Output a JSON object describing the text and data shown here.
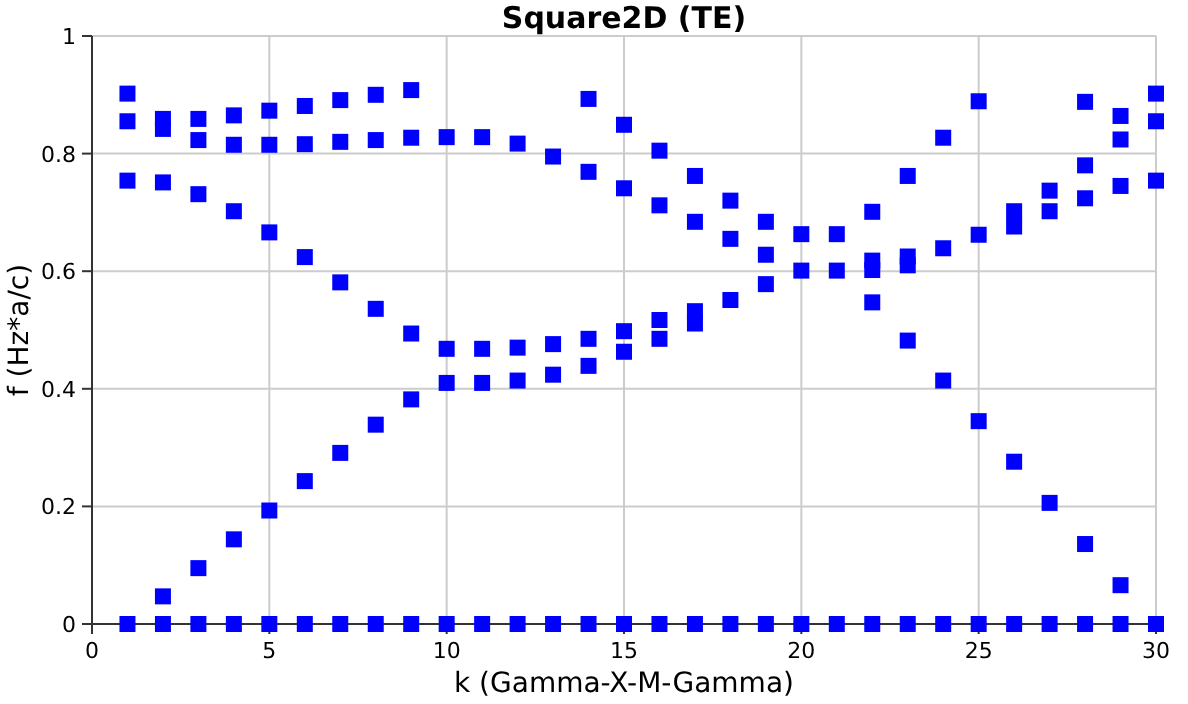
{
  "chart_data": {
    "type": "scatter",
    "title": "Square2D (TE)",
    "xlabel": "k (Gamma-X-M-Gamma)",
    "ylabel": "f (Hz*a/c)",
    "xlim": [
      0,
      30
    ],
    "xticks": [
      0,
      5,
      10,
      15,
      20,
      25,
      30
    ],
    "ylim": [
      0,
      1
    ],
    "yticks": [
      0,
      0.2,
      0.4,
      0.6,
      0.8,
      1
    ],
    "grid": true,
    "marker": "square",
    "series": [
      {
        "color": "#0000ff",
        "x": [
          1,
          2,
          3,
          4,
          5,
          6,
          7,
          8,
          9,
          10,
          11,
          12,
          13,
          14,
          15,
          16,
          17,
          18,
          19,
          20,
          21,
          22,
          23,
          24,
          25,
          26,
          27,
          28,
          29,
          30
        ],
        "values": [
          0,
          0,
          0,
          0,
          0,
          0,
          0,
          0,
          0,
          0,
          0,
          0,
          0,
          0,
          0,
          0,
          0,
          0,
          0,
          0,
          0,
          0,
          0,
          0,
          0,
          0,
          0,
          0,
          0,
          0
        ]
      },
      {
        "color": "#0000ff",
        "x": [
          2,
          3,
          4,
          5,
          6,
          7,
          8,
          9,
          10,
          11,
          12,
          13,
          14,
          15,
          16,
          17,
          18,
          19,
          20,
          21,
          22,
          23,
          24,
          25,
          26,
          27,
          28,
          29
        ],
        "values": [
          0.047,
          0.095,
          0.144,
          0.193,
          0.243,
          0.291,
          0.339,
          0.382,
          0.41,
          0.41,
          0.414,
          0.424,
          0.439,
          0.463,
          0.485,
          0.511,
          0.551,
          0.578,
          0.601,
          0.601,
          0.547,
          0.482,
          0.414,
          0.345,
          0.276,
          0.206,
          0.136,
          0.066
        ]
      },
      {
        "color": "#0000ff",
        "x": [
          1,
          2,
          3,
          4,
          5,
          6,
          7,
          8,
          9,
          10,
          11,
          12,
          13,
          14,
          15,
          16,
          17,
          18,
          19,
          20,
          21,
          22,
          23,
          24,
          25,
          26,
          27,
          28,
          29,
          30
        ],
        "values": [
          0.754,
          0.751,
          0.731,
          0.702,
          0.666,
          0.624,
          0.581,
          0.536,
          0.494,
          0.468,
          0.468,
          0.47,
          0.476,
          0.485,
          0.498,
          0.517,
          0.532,
          0.655,
          0.628,
          0.663,
          0.663,
          0.602,
          0.61,
          0.639,
          0.662,
          0.676,
          0.702,
          0.724,
          0.745,
          0.754
        ]
      },
      {
        "color": "#0000ff",
        "x": [
          1,
          2,
          3,
          4,
          5,
          6,
          7,
          8,
          9,
          10,
          11,
          12,
          13,
          14,
          15,
          16,
          17,
          18,
          19,
          22,
          23,
          26,
          27,
          28,
          29,
          30
        ],
        "values": [
          0.855,
          0.842,
          0.823,
          0.815,
          0.815,
          0.816,
          0.82,
          0.823,
          0.827,
          0.828,
          0.828,
          0.817,
          0.795,
          0.769,
          0.741,
          0.712,
          0.684,
          0.72,
          0.684,
          0.618,
          0.625,
          0.702,
          0.737,
          0.78,
          0.824,
          0.855
        ]
      },
      {
        "color": "#0000ff",
        "x": [
          1,
          2,
          3,
          4,
          5,
          6,
          7,
          8,
          9,
          14,
          15,
          16,
          17,
          22,
          23,
          24,
          25,
          28,
          29,
          30
        ],
        "values": [
          0.902,
          0.859,
          0.859,
          0.865,
          0.873,
          0.881,
          0.891,
          0.9,
          0.908,
          0.893,
          0.849,
          0.805,
          0.762,
          0.701,
          0.762,
          0.827,
          0.889,
          0.888,
          0.864,
          0.902
        ]
      }
    ]
  }
}
